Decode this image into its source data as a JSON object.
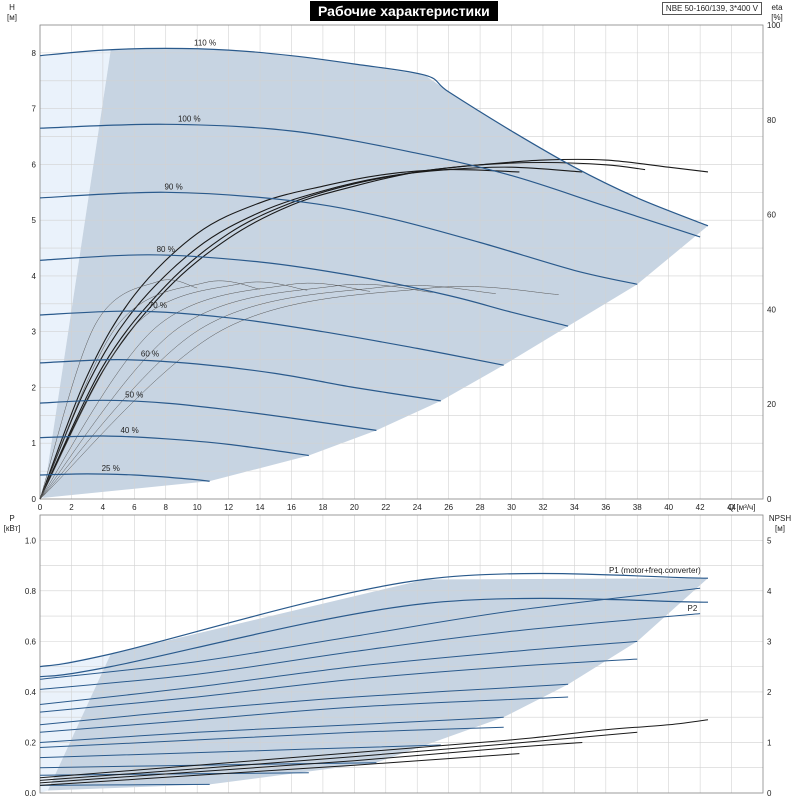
{
  "header": {
    "title": "Рабочие характеристики",
    "model": "NBE 50-160/139, 3*400 V"
  },
  "colors": {
    "curve": "#2a5a8c",
    "envelope_fill": "#c7d4e2",
    "light_fill": "#eaf2fb",
    "grid": "#d2d2d2",
    "eff_curve": "#1a1a1a"
  },
  "chart_data": [
    {
      "type": "line",
      "name": "head",
      "ylabel": "H",
      "yunit": "[м]",
      "y2label": "eta",
      "y2unit": "[%]",
      "xlabel": "Q",
      "xunit": "[м³/ч]",
      "xlim": [
        0,
        46
      ],
      "ylim": [
        0,
        8.5
      ],
      "y2lim": [
        0,
        100
      ],
      "xticks": [
        0,
        2,
        4,
        6,
        8,
        10,
        12,
        14,
        16,
        18,
        20,
        22,
        24,
        26,
        28,
        30,
        32,
        34,
        36,
        38,
        40,
        42,
        44
      ],
      "yticks": [
        0,
        1,
        2,
        3,
        4,
        5,
        6,
        7,
        8
      ],
      "y2ticks": [
        0,
        20,
        40,
        60,
        80,
        100
      ],
      "grid": true,
      "series": [
        {
          "name": "110 %",
          "x": [
            0,
            4,
            8,
            12,
            16,
            20,
            24.5,
            26,
            30,
            34,
            38,
            42.5
          ],
          "y": [
            7.95,
            8.05,
            8.08,
            8.05,
            7.95,
            7.8,
            7.6,
            7.3,
            6.6,
            5.95,
            5.4,
            4.9
          ]
        },
        {
          "name": "100 %",
          "x": [
            0,
            8,
            16,
            24,
            30,
            36,
            42
          ],
          "y": [
            6.65,
            6.72,
            6.6,
            6.2,
            5.8,
            5.25,
            4.7
          ]
        },
        {
          "name": "90 %",
          "x": [
            0,
            8,
            16,
            22,
            28,
            34,
            38
          ],
          "y": [
            5.4,
            5.5,
            5.35,
            5.05,
            4.6,
            4.1,
            3.85
          ]
        },
        {
          "name": "80 %",
          "x": [
            0,
            7,
            14,
            20,
            26,
            30,
            33.6
          ],
          "y": [
            4.28,
            4.38,
            4.25,
            4.0,
            3.65,
            3.35,
            3.1
          ]
        },
        {
          "name": "70 %",
          "x": [
            0,
            6,
            12,
            18,
            24,
            29.5
          ],
          "y": [
            3.3,
            3.37,
            3.25,
            3.0,
            2.7,
            2.4
          ]
        },
        {
          "name": "60 %",
          "x": [
            0,
            5,
            10,
            15,
            20,
            25.5
          ],
          "y": [
            2.44,
            2.5,
            2.42,
            2.25,
            2.0,
            1.76
          ]
        },
        {
          "name": "50 %",
          "x": [
            0,
            4,
            8,
            12,
            16,
            21.4
          ],
          "y": [
            1.72,
            1.77,
            1.72,
            1.6,
            1.45,
            1.23
          ]
        },
        {
          "name": "40 %",
          "x": [
            0,
            4,
            8,
            12,
            17.1
          ],
          "y": [
            1.1,
            1.13,
            1.08,
            0.98,
            0.78
          ]
        },
        {
          "name": "25 %",
          "x": [
            0,
            3,
            6,
            9,
            10.8
          ],
          "y": [
            0.43,
            0.45,
            0.43,
            0.37,
            0.32
          ]
        }
      ],
      "efficiency_series": [
        {
          "name": "eta 110 %",
          "x": [
            0,
            4,
            8,
            12,
            16,
            20,
            24,
            28,
            32,
            36,
            40,
            42.5
          ],
          "y": [
            0,
            27,
            44,
            55,
            62,
            66,
            69,
            70.5,
            71.5,
            71.5,
            70,
            69
          ]
        },
        {
          "name": "eta 100 %",
          "x": [
            0,
            4,
            8,
            12,
            16,
            20,
            24,
            28,
            32,
            36,
            38.5
          ],
          "y": [
            0,
            28,
            45,
            56,
            62.5,
            66.5,
            69,
            70.5,
            71,
            70.5,
            69.5
          ]
        },
        {
          "name": "eta 90 %",
          "x": [
            0,
            3,
            6,
            10,
            14,
            18,
            22,
            26,
            30,
            34.5
          ],
          "y": [
            0,
            24,
            40,
            53,
            60.5,
            65,
            68,
            69.5,
            70,
            69
          ]
        },
        {
          "name": "eta 80 %",
          "x": [
            0,
            3,
            6,
            10,
            14,
            18,
            22,
            26,
            30.5
          ],
          "y": [
            0,
            26,
            43,
            56,
            62.5,
            66,
            68.5,
            69.5,
            69
          ]
        }
      ],
      "labels": [
        "110 %",
        "100 %",
        "90 %",
        "80 %",
        "70 %",
        "60 %",
        "50 %",
        "40 %",
        "25 %"
      ]
    },
    {
      "type": "line",
      "name": "power",
      "ylabel": "P",
      "yunit": "[кВт]",
      "y2label": "NPSH",
      "y2unit": "[м]",
      "xlim": [
        0,
        46
      ],
      "ylim": [
        0,
        1.1
      ],
      "y2lim": [
        0,
        5.5
      ],
      "yticks": [
        0.0,
        0.2,
        0.4,
        0.6,
        0.8,
        1.0
      ],
      "y2ticks": [
        0,
        1,
        2,
        3,
        4,
        5
      ],
      "grid": true,
      "legend": [
        "P1 (motor+freq.converter)",
        "P2"
      ],
      "series": [
        {
          "name": "P1 (motor+freq.converter)",
          "x": [
            0,
            4.5,
            24.5,
            42.5
          ],
          "y": [
            0.5,
            0.55,
            0.845,
            0.85
          ]
        },
        {
          "name": "P2",
          "x": [
            0,
            4.5,
            24.5,
            42.5
          ],
          "y": [
            0.46,
            0.5,
            0.75,
            0.755
          ]
        },
        {
          "name": "P1 100 %",
          "x": [
            0,
            10,
            20,
            30,
            42
          ],
          "y": [
            0.45,
            0.52,
            0.62,
            0.72,
            0.81
          ]
        },
        {
          "name": "P2 100 %",
          "x": [
            0,
            10,
            20,
            30,
            42
          ],
          "y": [
            0.41,
            0.47,
            0.56,
            0.64,
            0.71
          ]
        },
        {
          "name": "P1 90 %",
          "x": [
            0,
            10,
            20,
            30,
            38
          ],
          "y": [
            0.35,
            0.42,
            0.5,
            0.56,
            0.6
          ]
        },
        {
          "name": "P2 90 %",
          "x": [
            0,
            10,
            20,
            30,
            38
          ],
          "y": [
            0.32,
            0.38,
            0.45,
            0.5,
            0.53
          ]
        },
        {
          "name": "P1 80 %",
          "x": [
            0,
            10,
            20,
            33.6
          ],
          "y": [
            0.27,
            0.33,
            0.38,
            0.43
          ]
        },
        {
          "name": "P2 80 %",
          "x": [
            0,
            10,
            20,
            33.6
          ],
          "y": [
            0.24,
            0.29,
            0.34,
            0.38
          ]
        },
        {
          "name": "P1 70 %",
          "x": [
            0,
            10,
            20,
            29.5
          ],
          "y": [
            0.2,
            0.24,
            0.27,
            0.3
          ]
        },
        {
          "name": "P2 70 %",
          "x": [
            0,
            10,
            20,
            29.5
          ],
          "y": [
            0.18,
            0.21,
            0.24,
            0.26
          ]
        },
        {
          "name": "P1 60 %",
          "x": [
            0,
            10,
            25.5
          ],
          "y": [
            0.14,
            0.16,
            0.19
          ]
        },
        {
          "name": "P1 50 %",
          "x": [
            0,
            10,
            21.4
          ],
          "y": [
            0.1,
            0.11,
            0.12
          ]
        },
        {
          "name": "P1 40 %",
          "x": [
            0,
            8,
            17.1
          ],
          "y": [
            0.07,
            0.075,
            0.08
          ]
        },
        {
          "name": "P1 25 %",
          "x": [
            0,
            5,
            10.8
          ],
          "y": [
            0.03,
            0.032,
            0.034
          ]
        }
      ],
      "npsh_series": [
        {
          "name": "NPSH 110 %",
          "x": [
            0,
            10,
            20,
            30,
            36,
            40,
            42.5
          ],
          "y": [
            0.3,
            0.55,
            0.8,
            1.05,
            1.25,
            1.35,
            1.45
          ]
        },
        {
          "name": "NPSH 100 %",
          "x": [
            0,
            10,
            20,
            30,
            38
          ],
          "y": [
            0.25,
            0.48,
            0.72,
            0.98,
            1.2
          ]
        },
        {
          "name": "NPSH 90 %",
          "x": [
            0,
            10,
            20,
            30,
            34.5
          ],
          "y": [
            0.2,
            0.42,
            0.64,
            0.9,
            1.0
          ]
        },
        {
          "name": "NPSH 80 %",
          "x": [
            0,
            10,
            20,
            30.5
          ],
          "y": [
            0.15,
            0.35,
            0.55,
            0.78
          ]
        }
      ]
    }
  ]
}
